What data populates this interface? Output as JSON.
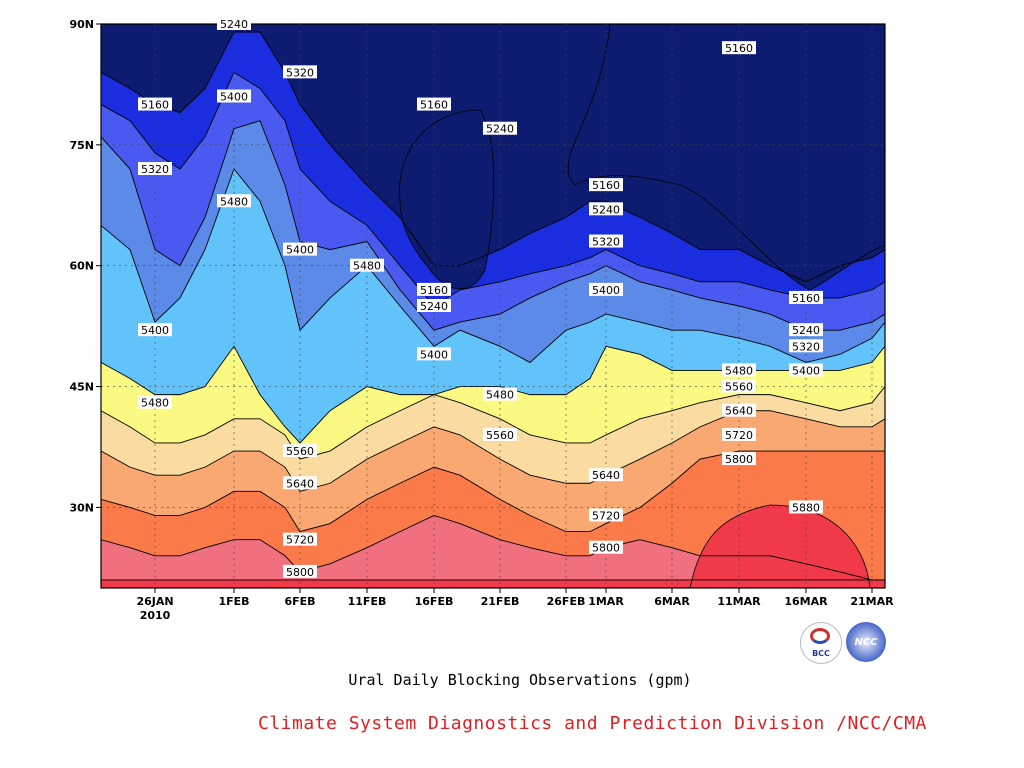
{
  "chart_data": {
    "type": "contour",
    "title": "Ural Daily Blocking Observations (gpm)",
    "x_ticks": [
      "26JAN",
      "1FEB",
      "6FEB",
      "11FEB",
      "16FEB",
      "21FEB",
      "26FEB",
      "1MAR",
      "6MAR",
      "11MAR",
      "16MAR",
      "21MAR"
    ],
    "x_year_label": "2010",
    "y_ticks": [
      "30N",
      "45N",
      "60N",
      "75N",
      "90N"
    ],
    "y_tick_values": [
      30,
      45,
      60,
      75,
      90
    ],
    "ylim": [
      20,
      90
    ],
    "grid": true,
    "contour_levels": [
      5160,
      5240,
      5320,
      5400,
      5480,
      5560,
      5640,
      5720,
      5800,
      5880
    ],
    "fill_colors": [
      "#0d1b70",
      "#1a2ee0",
      "#4a5af0",
      "#5b8ae8",
      "#62c2fa",
      "#fafa82",
      "#fadca0",
      "#faa872",
      "#fa7a4a",
      "#f07080",
      "#f03a4a"
    ],
    "contour_labels": [
      {
        "value": "5240",
        "lon": "1FEB",
        "lat": 90
      },
      {
        "value": "5320",
        "lon": "6FEB",
        "lat": 84
      },
      {
        "value": "5160",
        "lon": "26JAN",
        "lat": 80
      },
      {
        "value": "5400",
        "lon": "1FEB",
        "lat": 81
      },
      {
        "value": "5160",
        "lon": "16FEB",
        "lat": 80
      },
      {
        "value": "5240",
        "lon": "21FEB",
        "lat": 77
      },
      {
        "value": "5160",
        "lon": "11MAR",
        "lat": 87
      },
      {
        "value": "5320",
        "lon": "26JAN",
        "lat": 72
      },
      {
        "value": "5480",
        "lon": "1FEB",
        "lat": 68
      },
      {
        "value": "5160",
        "lon": "1MAR",
        "lat": 70
      },
      {
        "value": "5240",
        "lon": "1MAR",
        "lat": 67
      },
      {
        "value": "5400",
        "lon": "6FEB",
        "lat": 62
      },
      {
        "value": "5320",
        "lon": "1MAR",
        "lat": 63
      },
      {
        "value": "5480",
        "lon": "11FEB",
        "lat": 60
      },
      {
        "value": "5160",
        "lon": "16FEB",
        "lat": 57
      },
      {
        "value": "5400",
        "lon": "1MAR",
        "lat": 57
      },
      {
        "value": "5160",
        "lon": "16MAR",
        "lat": 56
      },
      {
        "value": "5240",
        "lon": "16FEB",
        "lat": 55
      },
      {
        "value": "5400",
        "lon": "26JAN",
        "lat": 52
      },
      {
        "value": "5240",
        "lon": "16MAR",
        "lat": 52
      },
      {
        "value": "5320",
        "lon": "16MAR",
        "lat": 50
      },
      {
        "value": "5400",
        "lon": "16FEB",
        "lat": 49
      },
      {
        "value": "5480",
        "lon": "11MAR",
        "lat": 47
      },
      {
        "value": "5400",
        "lon": "16MAR",
        "lat": 47
      },
      {
        "value": "5560",
        "lon": "11MAR",
        "lat": 45
      },
      {
        "value": "5480",
        "lon": "21FEB",
        "lat": 44
      },
      {
        "value": "5480",
        "lon": "26JAN",
        "lat": 43
      },
      {
        "value": "5640",
        "lon": "11MAR",
        "lat": 42
      },
      {
        "value": "5720",
        "lon": "11MAR",
        "lat": 39
      },
      {
        "value": "5560",
        "lon": "21FEB",
        "lat": 39
      },
      {
        "value": "5800",
        "lon": "11MAR",
        "lat": 36
      },
      {
        "value": "5560",
        "lon": "6FEB",
        "lat": 37
      },
      {
        "value": "5640",
        "lon": "1MAR",
        "lat": 34
      },
      {
        "value": "5640",
        "lon": "6FEB",
        "lat": 33
      },
      {
        "value": "5880",
        "lon": "16MAR",
        "lat": 30
      },
      {
        "value": "5720",
        "lon": "1MAR",
        "lat": 29
      },
      {
        "value": "5720",
        "lon": "6FEB",
        "lat": 26
      },
      {
        "value": "5800",
        "lon": "1MAR",
        "lat": 25
      },
      {
        "value": "5800",
        "lon": "6FEB",
        "lat": 22
      }
    ]
  },
  "caption": {
    "title": "Ural Daily Blocking Observations (gpm)",
    "organization": "Climate System Diagnostics and Prediction Division /NCC/CMA",
    "organization_color": "#e02020"
  },
  "logos": {
    "bcc": {
      "icon": "bcc-logo-icon",
      "text": "BCC"
    },
    "ncc": {
      "icon": "ncc-logo-icon",
      "text": "NCC"
    }
  }
}
